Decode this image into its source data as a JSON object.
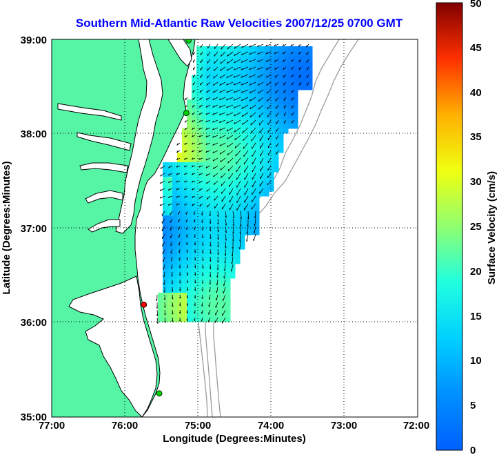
{
  "title": "Southern Mid-Atlantic Raw Velocities 2007/12/25 0700 GMT",
  "x_axis": {
    "label": "Longitude (Degrees:Minutes)",
    "ticks": [
      "77:00",
      "76:00",
      "75:00",
      "74:00",
      "73:00",
      "72:00"
    ]
  },
  "y_axis": {
    "label": "Latitude (Degrees:Minutes)",
    "ticks": [
      "39:00",
      "38:00",
      "37:00",
      "36:00",
      "35:00"
    ]
  },
  "colorbar": {
    "label": "Surface Velocity (cm/s)",
    "ticks": [
      "0",
      "5",
      "10",
      "15",
      "20",
      "25",
      "30",
      "35",
      "40",
      "45",
      "50"
    ],
    "range": [
      0,
      50
    ],
    "colormap": "jet"
  },
  "map": {
    "extent": {
      "lon": [
        -77,
        -72
      ],
      "lat": [
        35,
        39
      ]
    },
    "land_color": "#55f5a5",
    "coast_color": "#000000",
    "bathymetry_color": "#9a9a9a",
    "grid": "dotted",
    "station_markers": [
      {
        "color": "#00d000",
        "lon": -75.13,
        "lat": 38.99
      },
      {
        "color": "#00d000",
        "lon": -75.16,
        "lat": 38.22
      },
      {
        "color": "#ff0000",
        "lon": -75.74,
        "lat": 36.19
      },
      {
        "color": "#00d000",
        "lon": -75.53,
        "lat": 35.25
      }
    ]
  }
}
